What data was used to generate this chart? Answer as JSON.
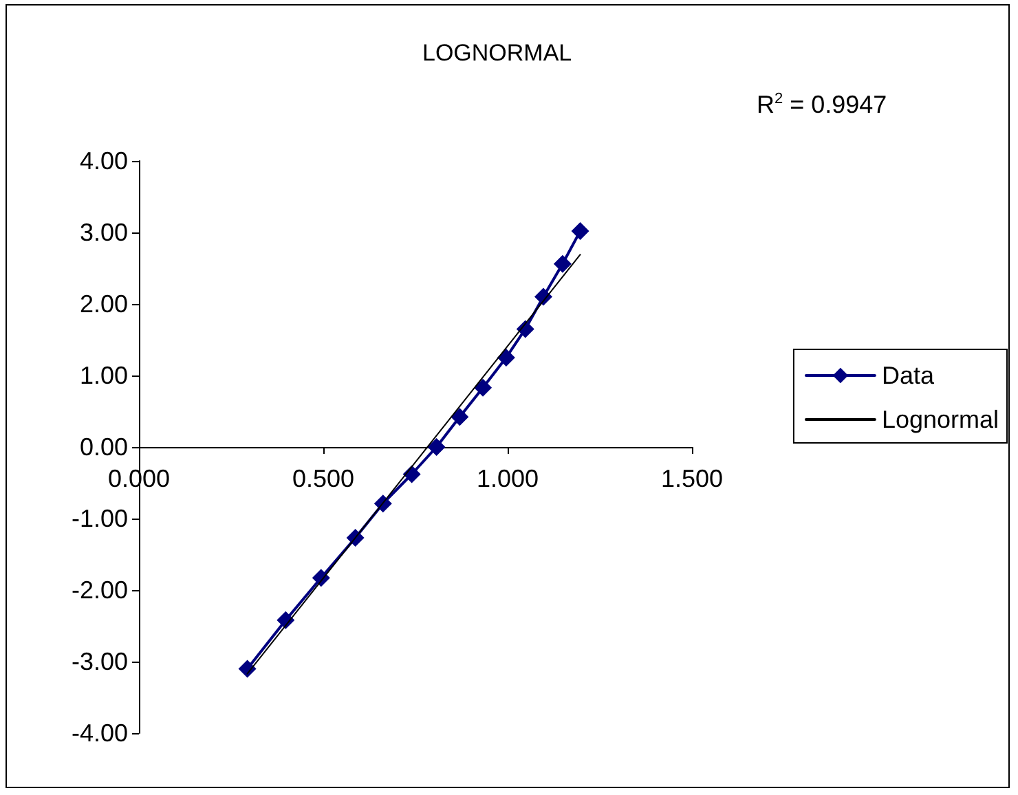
{
  "chart_data": {
    "type": "line",
    "title": "LOGNORMAL",
    "annotations": [
      "R$^{2}$ = 0.9947"
    ],
    "xlim": [
      0,
      1.5
    ],
    "xticks": [
      {
        "value": 0,
        "label": "0.000"
      },
      {
        "value": 0.5,
        "label": "0.500"
      },
      {
        "value": 1,
        "label": "1.000"
      },
      {
        "value": 1.5,
        "label": "1.500"
      }
    ],
    "ylim": [
      -4,
      4
    ],
    "yticks": [
      {
        "value": -4,
        "label": "-4.00"
      },
      {
        "value": -3,
        "label": "-3.00"
      },
      {
        "value": -2,
        "label": "-2.00"
      },
      {
        "value": -1,
        "label": "-1.00"
      },
      {
        "value": 0,
        "label": "0.00"
      },
      {
        "value": 1,
        "label": "1.00"
      },
      {
        "value": 2,
        "label": "2.00"
      },
      {
        "value": 3,
        "label": "3.00"
      },
      {
        "value": 4,
        "label": "4.00"
      }
    ],
    "legend": "right",
    "series": [
      {
        "name": "Data",
        "color": "#000080",
        "marker": "diamond",
        "x": [
          0.294,
          0.398,
          0.494,
          0.587,
          0.662,
          0.74,
          0.807,
          0.87,
          0.933,
          0.996,
          1.048,
          1.097,
          1.149,
          1.197
        ],
        "values": [
          -3.1,
          -2.42,
          -1.83,
          -1.27,
          -0.79,
          -0.38,
          0,
          0.42,
          0.83,
          1.25,
          1.65,
          2.1,
          2.56,
          3.02
        ]
      },
      {
        "name": "Lognormal",
        "color": "#000000",
        "marker": "none",
        "x": [
          0.294,
          1.197
        ],
        "values": [
          -3.17,
          2.69
        ]
      }
    ]
  }
}
